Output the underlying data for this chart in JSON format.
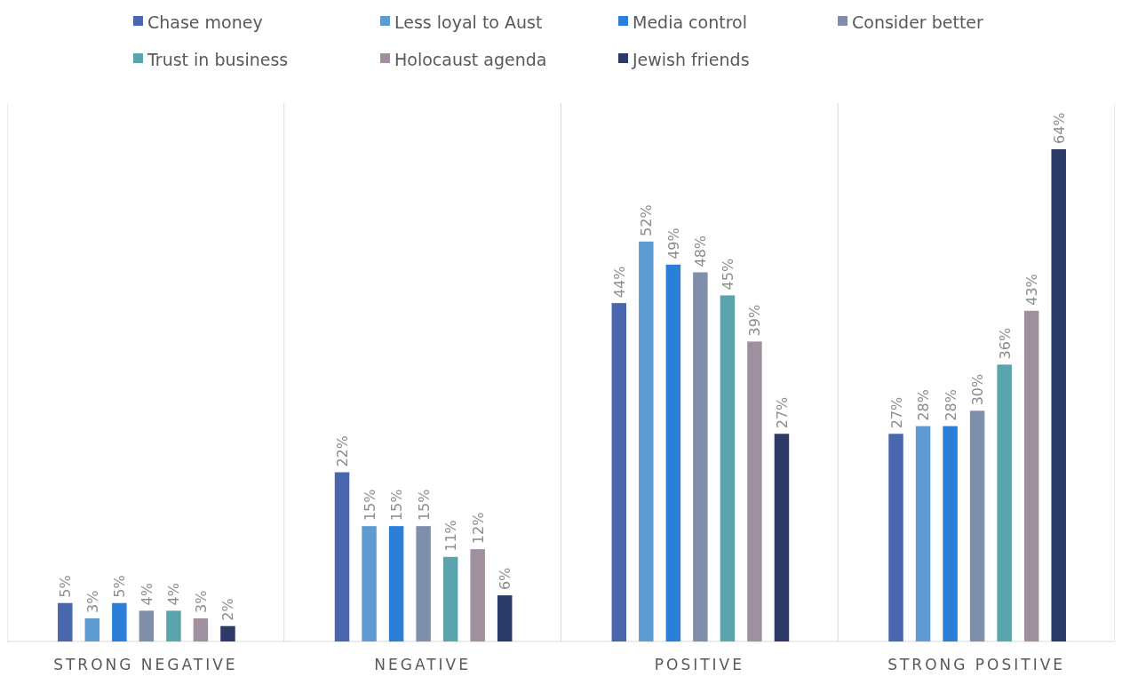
{
  "chart_data": {
    "type": "bar",
    "categories": [
      "STRONG NEGATIVE",
      "NEGATIVE",
      "POSITIVE",
      "STRONG POSITIVE"
    ],
    "legend": "top",
    "grid": "x",
    "series": [
      {
        "name": "Chase money",
        "color": "#4a66ae",
        "values": [
          5,
          22,
          44,
          27
        ],
        "value_labels": [
          "5%",
          "22%",
          "44%",
          "27%"
        ]
      },
      {
        "name": "Less loyal to Aust",
        "color": "#5f9bd3",
        "values": [
          3,
          15,
          52,
          28
        ],
        "value_labels": [
          "3%",
          "15%",
          "52%",
          "28%"
        ]
      },
      {
        "name": "Media control",
        "color": "#2b7fd8",
        "values": [
          5,
          15,
          49,
          28
        ],
        "value_labels": [
          "5%",
          "15%",
          "49%",
          "28%"
        ]
      },
      {
        "name": "Consider better",
        "color": "#7f8fab",
        "values": [
          4,
          15,
          48,
          30
        ],
        "value_labels": [
          "4%",
          "15%",
          "48%",
          "30%"
        ]
      },
      {
        "name": "Trust in business",
        "color": "#5aa4ad",
        "values": [
          4,
          11,
          45,
          36
        ],
        "value_labels": [
          "4%",
          "11%",
          "45%",
          "36%"
        ]
      },
      {
        "name": "Holocaust agenda",
        "color": "#a08f9f",
        "values": [
          3,
          12,
          39,
          43
        ],
        "value_labels": [
          "3%",
          "12%",
          "39%",
          "43%"
        ]
      },
      {
        "name": "Jewish friends",
        "color": "#2b3a66",
        "values": [
          2,
          6,
          27,
          64
        ],
        "value_labels": [
          "2%",
          "6%",
          "27%",
          "64%"
        ]
      }
    ]
  }
}
